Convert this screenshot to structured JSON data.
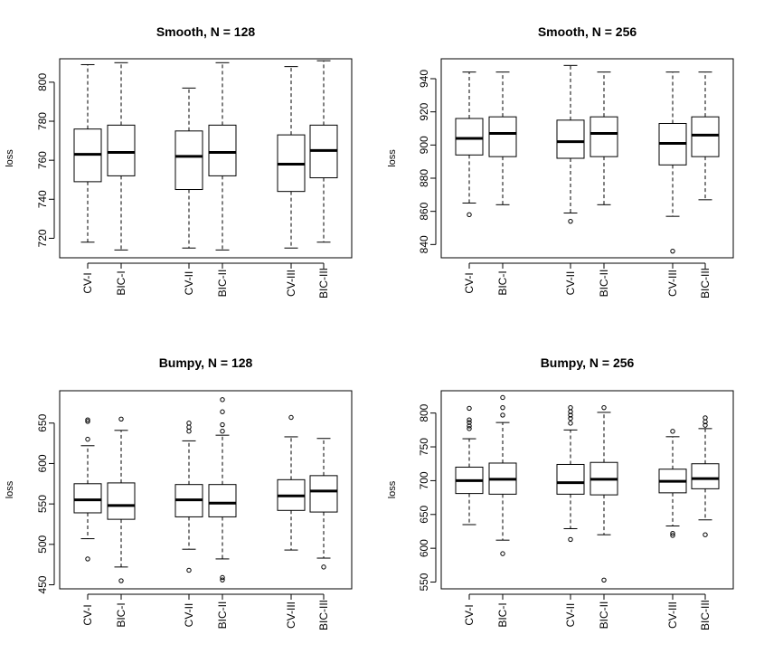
{
  "chart_data": [
    {
      "type": "boxplot",
      "title": "Smooth, N = 128",
      "ylabel": "loss",
      "xlabel": "",
      "ylim": [
        710,
        812
      ],
      "yticks": [
        720,
        740,
        760,
        780,
        800
      ],
      "categories": [
        "CV-I",
        "BIC-I",
        "CV-II",
        "BIC-II",
        "CV-III",
        "BIC-III"
      ],
      "boxes": [
        {
          "whisker_low": 718,
          "q1": 749,
          "median": 763,
          "q3": 776,
          "whisker_high": 809,
          "outliers": []
        },
        {
          "whisker_low": 714,
          "q1": 752,
          "median": 764,
          "q3": 778,
          "whisker_high": 810,
          "outliers": []
        },
        {
          "whisker_low": 715,
          "q1": 745,
          "median": 762,
          "q3": 775,
          "whisker_high": 797,
          "outliers": []
        },
        {
          "whisker_low": 714,
          "q1": 752,
          "median": 764,
          "q3": 778,
          "whisker_high": 810,
          "outliers": []
        },
        {
          "whisker_low": 715,
          "q1": 744,
          "median": 758,
          "q3": 773,
          "whisker_high": 808,
          "outliers": []
        },
        {
          "whisker_low": 718,
          "q1": 751,
          "median": 765,
          "q3": 778,
          "whisker_high": 811,
          "outliers": []
        }
      ]
    },
    {
      "type": "boxplot",
      "title": "Smooth, N = 256",
      "ylabel": "loss",
      "xlabel": "",
      "ylim": [
        832,
        952
      ],
      "yticks": [
        840,
        860,
        880,
        900,
        920,
        940
      ],
      "categories": [
        "CV-I",
        "BIC-I",
        "CV-II",
        "BIC-II",
        "CV-III",
        "BIC-III"
      ],
      "boxes": [
        {
          "whisker_low": 865,
          "q1": 894,
          "median": 904,
          "q3": 916,
          "whisker_high": 944,
          "outliers": [
            858
          ]
        },
        {
          "whisker_low": 864,
          "q1": 893,
          "median": 907,
          "q3": 917,
          "whisker_high": 944,
          "outliers": []
        },
        {
          "whisker_low": 859,
          "q1": 892,
          "median": 902,
          "q3": 915,
          "whisker_high": 948,
          "outliers": [
            854
          ]
        },
        {
          "whisker_low": 864,
          "q1": 893,
          "median": 907,
          "q3": 917,
          "whisker_high": 944,
          "outliers": []
        },
        {
          "whisker_low": 857,
          "q1": 888,
          "median": 901,
          "q3": 913,
          "whisker_high": 944,
          "outliers": [
            836
          ]
        },
        {
          "whisker_low": 867,
          "q1": 893,
          "median": 906,
          "q3": 917,
          "whisker_high": 944,
          "outliers": []
        }
      ]
    },
    {
      "type": "boxplot",
      "title": "Bumpy, N = 128",
      "ylabel": "loss",
      "xlabel": "",
      "ylim": [
        445,
        690
      ],
      "yticks": [
        450,
        500,
        550,
        600,
        650
      ],
      "categories": [
        "CV-I",
        "BIC-I",
        "CV-II",
        "BIC-II",
        "CV-III",
        "BIC-III"
      ],
      "boxes": [
        {
          "whisker_low": 507,
          "q1": 539,
          "median": 555,
          "q3": 575,
          "whisker_high": 622,
          "outliers": [
            482,
            630,
            652,
            654
          ]
        },
        {
          "whisker_low": 472,
          "q1": 531,
          "median": 548,
          "q3": 576,
          "whisker_high": 641,
          "outliers": [
            455,
            655
          ]
        },
        {
          "whisker_low": 494,
          "q1": 534,
          "median": 555,
          "q3": 574,
          "whisker_high": 628,
          "outliers": [
            468,
            640,
            645,
            650
          ]
        },
        {
          "whisker_low": 482,
          "q1": 534,
          "median": 551,
          "q3": 574,
          "whisker_high": 635,
          "outliers": [
            456,
            459,
            640,
            648,
            664,
            679
          ]
        },
        {
          "whisker_low": 493,
          "q1": 542,
          "median": 560,
          "q3": 580,
          "whisker_high": 633,
          "outliers": [
            657
          ]
        },
        {
          "whisker_low": 483,
          "q1": 540,
          "median": 566,
          "q3": 585,
          "whisker_high": 631,
          "outliers": [
            472
          ]
        }
      ]
    },
    {
      "type": "boxplot",
      "title": "Bumpy, N = 256",
      "ylabel": "loss",
      "xlabel": "",
      "ylim": [
        540,
        833
      ],
      "yticks": [
        550,
        600,
        650,
        700,
        750,
        800
      ],
      "categories": [
        "CV-I",
        "BIC-I",
        "CV-II",
        "BIC-II",
        "CV-III",
        "BIC-III"
      ],
      "boxes": [
        {
          "whisker_low": 635,
          "q1": 681,
          "median": 700,
          "q3": 720,
          "whisker_high": 762,
          "outliers": [
            777,
            781,
            786,
            790,
            807
          ]
        },
        {
          "whisker_low": 612,
          "q1": 680,
          "median": 702,
          "q3": 726,
          "whisker_high": 786,
          "outliers": [
            592,
            797,
            808,
            823
          ]
        },
        {
          "whisker_low": 629,
          "q1": 680,
          "median": 697,
          "q3": 724,
          "whisker_high": 775,
          "outliers": [
            613,
            785,
            792,
            797,
            802,
            808
          ]
        },
        {
          "whisker_low": 620,
          "q1": 679,
          "median": 702,
          "q3": 727,
          "whisker_high": 801,
          "outliers": [
            553,
            808
          ]
        },
        {
          "whisker_low": 633,
          "q1": 682,
          "median": 699,
          "q3": 717,
          "whisker_high": 765,
          "outliers": [
            619,
            622,
            773
          ]
        },
        {
          "whisker_low": 642,
          "q1": 688,
          "median": 703,
          "q3": 725,
          "whisker_high": 777,
          "outliers": [
            620,
            782,
            787,
            793
          ]
        }
      ]
    }
  ]
}
